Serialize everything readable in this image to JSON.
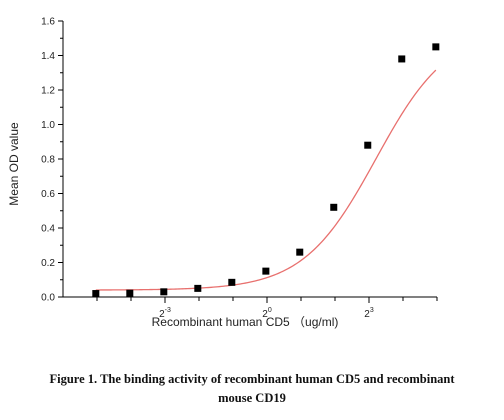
{
  "chart_data": {
    "type": "scatter",
    "xlabel": "Recombinant human  CD5 （ug/ml)",
    "ylabel": "Mean OD value",
    "x_scale": "log2",
    "xlim": [
      0.015625,
      32
    ],
    "ylim": [
      0,
      1.6
    ],
    "yticks": [
      0.0,
      0.2,
      0.4,
      0.6,
      0.8,
      1.0,
      1.2,
      1.4,
      1.6
    ],
    "ytick_labels": [
      "0.0",
      "0.2",
      "0.4",
      "0.6",
      "0.8",
      "1.0",
      "1.2",
      "1.4",
      "1.6"
    ],
    "xtick_labels": [
      {
        "base": "2",
        "exp": "-3",
        "value": 0.125
      },
      {
        "base": "2",
        "exp": "0",
        "value": 1
      },
      {
        "base": "2",
        "exp": "3",
        "value": 8
      }
    ],
    "grid": false,
    "points": [
      {
        "x": 0.0305,
        "y": 0.02
      },
      {
        "x": 0.061,
        "y": 0.022
      },
      {
        "x": 0.122,
        "y": 0.03
      },
      {
        "x": 0.244,
        "y": 0.05
      },
      {
        "x": 0.488,
        "y": 0.085
      },
      {
        "x": 0.977,
        "y": 0.15
      },
      {
        "x": 1.95,
        "y": 0.26
      },
      {
        "x": 3.9,
        "y": 0.52
      },
      {
        "x": 7.8,
        "y": 0.88
      },
      {
        "x": 15.6,
        "y": 1.38
      },
      {
        "x": 31.25,
        "y": 1.45
      }
    ],
    "fit": {
      "model": "4PL",
      "bottom": 0.04,
      "top": 1.56,
      "ec50": 9.2,
      "hill": 1.35,
      "color": "#e8706e"
    },
    "marker_color": "#000000"
  },
  "caption": {
    "line1": "Figure 1. The binding activity of recombinant human CD5 and recombinant",
    "line2": "mouse CD19"
  }
}
